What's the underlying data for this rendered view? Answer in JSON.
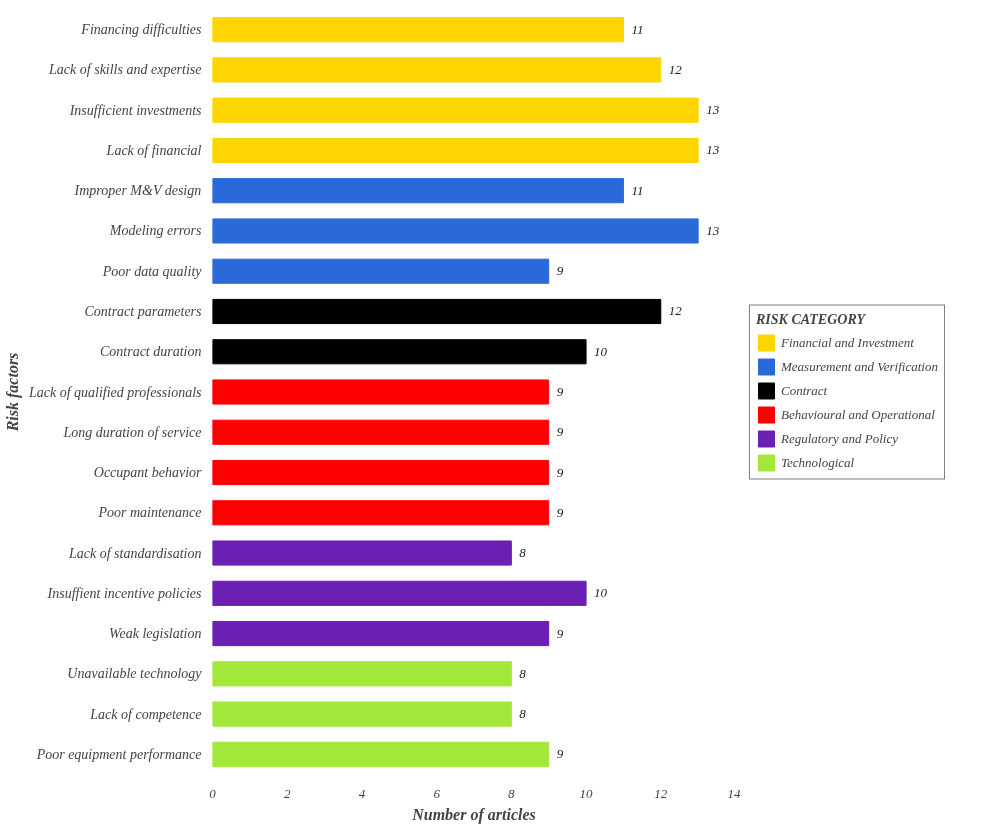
{
  "chart_data": {
    "type": "bar",
    "orientation": "horizontal",
    "xlabel": "Number of articles",
    "ylabel": "Risk factors",
    "legend_title": "RISK CATEGORY",
    "categories": [
      "Financing difficulties",
      "Lack of skills and expertise",
      "Insufficient investments",
      "Lack of financial",
      "Improper M&V design",
      "Modeling errors",
      "Poor data quality",
      "Contract parameters",
      "Contract duration",
      "Lack of qualified professionals",
      "Long duration of service",
      "Occupant behavior",
      "Poor maintenance",
      "Lack of standardisation",
      "Insuffient incentive policies",
      "Weak legislation",
      "Unavailable technology",
      "Lack of competence",
      "Poor equipment performance"
    ],
    "series": [
      {
        "name": "Financial and Investment",
        "color": "#ffd500",
        "values": [
          11,
          12,
          13,
          13,
          null,
          null,
          null,
          null,
          null,
          null,
          null,
          null,
          null,
          null,
          null,
          null,
          null,
          null,
          null
        ]
      },
      {
        "name": "Measurement and Verification",
        "color": "#2a6ad8",
        "values": [
          null,
          null,
          null,
          null,
          11,
          13,
          9,
          null,
          null,
          null,
          null,
          null,
          null,
          null,
          null,
          null,
          null,
          null,
          null
        ]
      },
      {
        "name": "Contract",
        "color": "#000000",
        "values": [
          null,
          null,
          null,
          null,
          null,
          null,
          null,
          12,
          10,
          null,
          null,
          null,
          null,
          null,
          null,
          null,
          null,
          null,
          null
        ]
      },
      {
        "name": "Behavioural and Operational",
        "color": "#ff0000",
        "values": [
          null,
          null,
          null,
          null,
          null,
          null,
          null,
          null,
          null,
          9,
          9,
          9,
          9,
          null,
          null,
          null,
          null,
          null,
          null
        ]
      },
      {
        "name": "Regulatory and Policy",
        "color": "#6a1fb5",
        "values": [
          null,
          null,
          null,
          null,
          null,
          null,
          null,
          null,
          null,
          null,
          null,
          null,
          null,
          8,
          10,
          9,
          null,
          null,
          null
        ]
      },
      {
        "name": "Technological",
        "color": "#a2e83a",
        "values": [
          null,
          null,
          null,
          null,
          null,
          null,
          null,
          null,
          null,
          null,
          null,
          null,
          null,
          null,
          null,
          null,
          8,
          8,
          9
        ]
      }
    ],
    "xlim": [
      0,
      14
    ],
    "xticks": [
      0,
      2,
      4,
      6,
      8,
      10,
      12,
      14
    ],
    "data_labels": true,
    "grid": false,
    "legend": "right"
  }
}
